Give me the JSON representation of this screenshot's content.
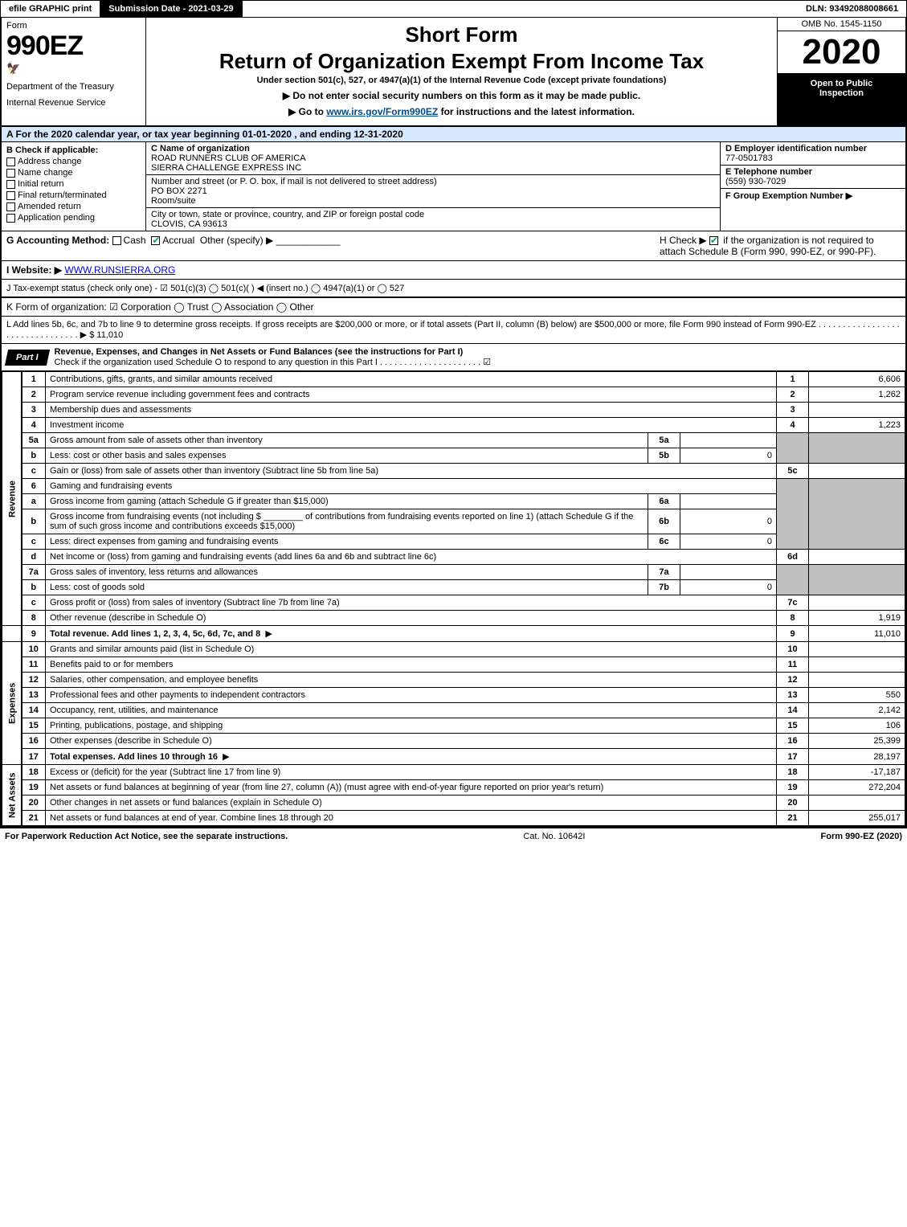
{
  "topbar": {
    "efile": "efile GRAPHIC print",
    "submission": "Submission Date - 2021-03-29",
    "dln": "DLN: 93492088008661"
  },
  "header": {
    "form_word": "Form",
    "form_num": "990EZ",
    "dept": "Department of the Treasury",
    "irs": "Internal Revenue Service",
    "title1": "Short Form",
    "title2": "Return of Organization Exempt From Income Tax",
    "subtitle": "Under section 501(c), 527, or 4947(a)(1) of the Internal Revenue Code (except private foundations)",
    "note1": "▶ Do not enter social security numbers on this form as it may be made public.",
    "note2_pre": "▶ Go to ",
    "note2_link": "www.irs.gov/Form990EZ",
    "note2_post": " for instructions and the latest information.",
    "omb": "OMB No. 1545-1150",
    "year": "2020",
    "inspect1": "Open to Public",
    "inspect2": "Inspection"
  },
  "period": "A For the 2020 calendar year, or tax year beginning 01-01-2020 , and ending 12-31-2020",
  "boxB": {
    "label": "B Check if applicable:",
    "opts": [
      "Address change",
      "Name change",
      "Initial return",
      "Final return/terminated",
      "Amended return",
      "Application pending"
    ]
  },
  "boxC": {
    "name_label": "C Name of organization",
    "name1": "ROAD RUNNERS CLUB OF AMERICA",
    "name2": "SIERRA CHALLENGE EXPRESS INC",
    "street_label": "Number and street (or P. O. box, if mail is not delivered to street address)",
    "street": "PO BOX 2271",
    "room_label": "Room/suite",
    "city_label": "City or town, state or province, country, and ZIP or foreign postal code",
    "city": "CLOVIS, CA  93613"
  },
  "boxD": {
    "ein_label": "D Employer identification number",
    "ein": "77-0501783",
    "tel_label": "E Telephone number",
    "tel": "(559) 930-7029",
    "group_label": "F Group Exemption Number ▶"
  },
  "rowG": {
    "label": "G Accounting Method:",
    "cash": "Cash",
    "accrual": "Accrual",
    "other": "Other (specify) ▶"
  },
  "rowH": {
    "text1": "H Check ▶",
    "text2": "if the organization is not required to attach Schedule B (Form 990, 990-EZ, or 990-PF)."
  },
  "rowI": {
    "label": "I Website: ▶",
    "value": "WWW.RUNSIERRA.ORG"
  },
  "rowJ": "J Tax-exempt status (check only one) - ☑ 501(c)(3)  ◯ 501(c)( ) ◀ (insert no.)  ◯ 4947(a)(1) or  ◯ 527",
  "rowK": "K Form of organization:  ☑ Corporation  ◯ Trust  ◯ Association  ◯ Other",
  "rowL": {
    "text": "L Add lines 5b, 6c, and 7b to line 9 to determine gross receipts. If gross receipts are $200,000 or more, or if total assets (Part II, column (B) below) are $500,000 or more, file Form 990 instead of Form 990-EZ . . . . . . . . . . . . . . . . . . . . . . . . . . . . . . . . ▶",
    "amount": "$ 11,010"
  },
  "part1": {
    "tab": "Part I",
    "title": "Revenue, Expenses, and Changes in Net Assets or Fund Balances (see the instructions for Part I)",
    "check_note": "Check if the organization used Schedule O to respond to any question in this Part I . . . . . . . . . . . . . . . . . . . . . ☑"
  },
  "sections": {
    "revenue": "Revenue",
    "expenses": "Expenses",
    "netassets": "Net Assets"
  },
  "lines": {
    "l1": {
      "no": "1",
      "desc": "Contributions, gifts, grants, and similar amounts received",
      "rno": "1",
      "val": "6,606"
    },
    "l2": {
      "no": "2",
      "desc": "Program service revenue including government fees and contracts",
      "rno": "2",
      "val": "1,262"
    },
    "l3": {
      "no": "3",
      "desc": "Membership dues and assessments",
      "rno": "3",
      "val": ""
    },
    "l4": {
      "no": "4",
      "desc": "Investment income",
      "rno": "4",
      "val": "1,223"
    },
    "l5a": {
      "no": "5a",
      "desc": "Gross amount from sale of assets other than inventory",
      "subno": "5a",
      "subval": ""
    },
    "l5b": {
      "no": "b",
      "desc": "Less: cost or other basis and sales expenses",
      "subno": "5b",
      "subval": "0"
    },
    "l5c": {
      "no": "c",
      "desc": "Gain or (loss) from sale of assets other than inventory (Subtract line 5b from line 5a)",
      "rno": "5c",
      "val": ""
    },
    "l6": {
      "no": "6",
      "desc": "Gaming and fundraising events"
    },
    "l6a": {
      "no": "a",
      "desc": "Gross income from gaming (attach Schedule G if greater than $15,000)",
      "subno": "6a",
      "subval": ""
    },
    "l6b": {
      "no": "b",
      "desc": "Gross income from fundraising events (not including $ ________ of contributions from fundraising events reported on line 1) (attach Schedule G if the sum of such gross income and contributions exceeds $15,000)",
      "subno": "6b",
      "subval": "0"
    },
    "l6c": {
      "no": "c",
      "desc": "Less: direct expenses from gaming and fundraising events",
      "subno": "6c",
      "subval": "0"
    },
    "l6d": {
      "no": "d",
      "desc": "Net income or (loss) from gaming and fundraising events (add lines 6a and 6b and subtract line 6c)",
      "rno": "6d",
      "val": ""
    },
    "l7a": {
      "no": "7a",
      "desc": "Gross sales of inventory, less returns and allowances",
      "subno": "7a",
      "subval": ""
    },
    "l7b": {
      "no": "b",
      "desc": "Less: cost of goods sold",
      "subno": "7b",
      "subval": "0"
    },
    "l7c": {
      "no": "c",
      "desc": "Gross profit or (loss) from sales of inventory (Subtract line 7b from line 7a)",
      "rno": "7c",
      "val": ""
    },
    "l8": {
      "no": "8",
      "desc": "Other revenue (describe in Schedule O)",
      "rno": "8",
      "val": "1,919"
    },
    "l9": {
      "no": "9",
      "desc": "Total revenue. Add lines 1, 2, 3, 4, 5c, 6d, 7c, and 8",
      "rno": "9",
      "val": "11,010"
    },
    "l10": {
      "no": "10",
      "desc": "Grants and similar amounts paid (list in Schedule O)",
      "rno": "10",
      "val": ""
    },
    "l11": {
      "no": "11",
      "desc": "Benefits paid to or for members",
      "rno": "11",
      "val": ""
    },
    "l12": {
      "no": "12",
      "desc": "Salaries, other compensation, and employee benefits",
      "rno": "12",
      "val": ""
    },
    "l13": {
      "no": "13",
      "desc": "Professional fees and other payments to independent contractors",
      "rno": "13",
      "val": "550"
    },
    "l14": {
      "no": "14",
      "desc": "Occupancy, rent, utilities, and maintenance",
      "rno": "14",
      "val": "2,142"
    },
    "l15": {
      "no": "15",
      "desc": "Printing, publications, postage, and shipping",
      "rno": "15",
      "val": "106"
    },
    "l16": {
      "no": "16",
      "desc": "Other expenses (describe in Schedule O)",
      "rno": "16",
      "val": "25,399"
    },
    "l17": {
      "no": "17",
      "desc": "Total expenses. Add lines 10 through 16",
      "rno": "17",
      "val": "28,197"
    },
    "l18": {
      "no": "18",
      "desc": "Excess or (deficit) for the year (Subtract line 17 from line 9)",
      "rno": "18",
      "val": "-17,187"
    },
    "l19": {
      "no": "19",
      "desc": "Net assets or fund balances at beginning of year (from line 27, column (A)) (must agree with end-of-year figure reported on prior year's return)",
      "rno": "19",
      "val": "272,204"
    },
    "l20": {
      "no": "20",
      "desc": "Other changes in net assets or fund balances (explain in Schedule O)",
      "rno": "20",
      "val": ""
    },
    "l21": {
      "no": "21",
      "desc": "Net assets or fund balances at end of year. Combine lines 18 through 20",
      "rno": "21",
      "val": "255,017"
    }
  },
  "footer": {
    "left": "For Paperwork Reduction Act Notice, see the separate instructions.",
    "mid": "Cat. No. 10642I",
    "right": "Form 990-EZ (2020)"
  }
}
